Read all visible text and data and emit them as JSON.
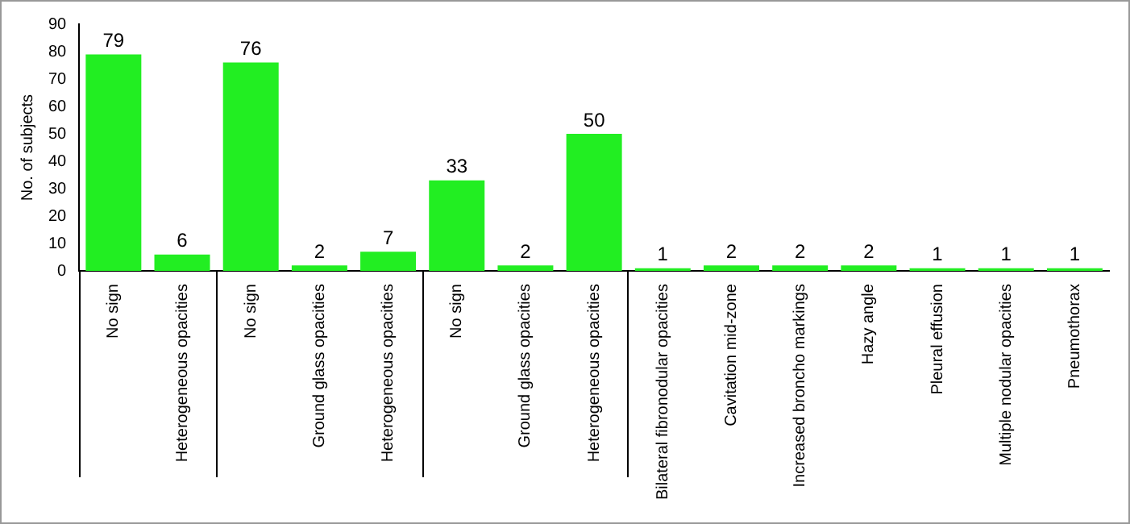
{
  "chart_data": {
    "type": "bar",
    "ylabel": "No. of subjects",
    "categories": [
      "No sign",
      "Heterogeneous opacities",
      "No sign",
      "Ground glass opacities",
      "Heterogeneous opacities",
      "No sign",
      "Ground glass opacities",
      "Heterogeneous opacities",
      "Bilateral fibronodular opacities",
      "Cavitation mid-zone",
      "Increased broncho markings",
      "Hazy angle",
      "Pleural effusion",
      "Multiple nodular opacities",
      "Pneumothorax"
    ],
    "values": [
      79,
      6,
      76,
      2,
      7,
      33,
      2,
      50,
      1,
      2,
      2,
      2,
      1,
      1,
      1
    ],
    "color": "#22ee22",
    "ylim": [
      0,
      90
    ],
    "yticks": [
      0,
      10,
      20,
      30,
      40,
      50,
      60,
      70,
      80,
      90
    ],
    "grid": false,
    "data_labels": true
  }
}
